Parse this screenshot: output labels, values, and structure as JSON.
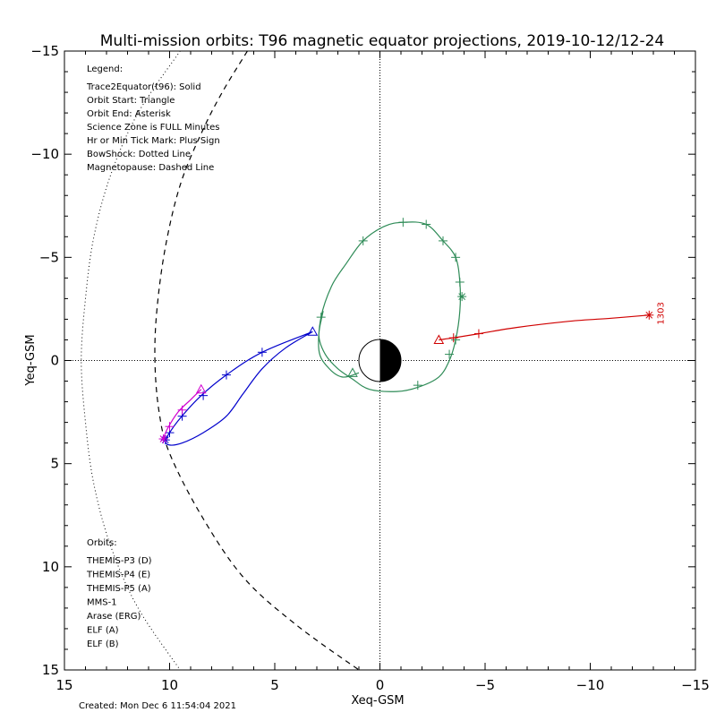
{
  "chart_data": {
    "type": "line",
    "title": "Multi-mission orbits: T96 magnetic equator projections, 2019-10-12/12-24",
    "xlabel": "Xeq-GSM",
    "ylabel": "Yeq-GSM",
    "xlim": [
      15,
      -15
    ],
    "ylim": [
      -15,
      15
    ],
    "x_ticks": [
      15,
      10,
      5,
      0,
      -5,
      -10,
      -15
    ],
    "y_ticks": [
      -15,
      -10,
      -5,
      0,
      5,
      10,
      15
    ],
    "x_tick_labels": [
      "15",
      "10",
      "5",
      "0",
      "−5",
      "−10",
      "−15"
    ],
    "y_tick_labels": [
      "−15",
      "−10",
      "−5",
      "0",
      "5",
      "10",
      "15"
    ],
    "legend": {
      "title": "Legend:",
      "items": [
        "Trace2Equator(t96): Solid",
        "Orbit Start: Triangle",
        "Orbit End: Asterisk",
        "Science Zone is FULL Minutes",
        "Hr or Min Tick Mark: Plus Sign",
        "BowShock: Dotted Line",
        "Magnetopause: Dashed Line"
      ]
    },
    "orbits_legend": {
      "title": "Orbits:",
      "items": [
        {
          "label": "THEMIS-P3 (D)",
          "color": "#00e5e5"
        },
        {
          "label": "THEMIS-P4 (E)",
          "color": "#0000cc"
        },
        {
          "label": "THEMIS-P5 (A)",
          "color": "#d000d0"
        },
        {
          "label": "MMS-1",
          "color": "#000000"
        },
        {
          "label": "Arase (ERG)",
          "color": "#2e8b57"
        },
        {
          "label": "ELF (A)",
          "color": "#4a7fd0"
        },
        {
          "label": "ELF (B)",
          "color": "#d00000"
        }
      ]
    },
    "created_text": "Created: Mon Dec  6 11:54:04 2021",
    "end_time_label": "1303",
    "bowshock": {
      "style": "dotted",
      "points": [
        [
          9.5,
          -15
        ],
        [
          11.5,
          -12
        ],
        [
          12.8,
          -9
        ],
        [
          13.6,
          -6
        ],
        [
          14.0,
          -3
        ],
        [
          14.2,
          0
        ],
        [
          14.0,
          3
        ],
        [
          13.6,
          6
        ],
        [
          12.8,
          9
        ],
        [
          11.5,
          12
        ],
        [
          9.5,
          15
        ]
      ]
    },
    "magnetopause": {
      "style": "dashed",
      "points": [
        [
          6.3,
          -15
        ],
        [
          7.5,
          -13
        ],
        [
          8.5,
          -11
        ],
        [
          9.5,
          -8.5
        ],
        [
          10.2,
          -5.5
        ],
        [
          10.6,
          -2.5
        ],
        [
          10.7,
          0
        ],
        [
          10.5,
          2.5
        ],
        [
          10.0,
          4.5
        ],
        [
          8.5,
          7.5
        ],
        [
          6.5,
          10.5
        ],
        [
          4.0,
          12.8
        ],
        [
          1.0,
          15
        ]
      ]
    },
    "series": [
      {
        "name": "THEMIS-P4 (E)",
        "color": "#0000cc",
        "points": [
          [
            3.2,
            -1.4
          ],
          [
            4.5,
            -0.6
          ],
          [
            5.6,
            0.4
          ],
          [
            6.5,
            1.6
          ],
          [
            7.3,
            2.7
          ],
          [
            8.4,
            3.5
          ],
          [
            9.4,
            4.0
          ],
          [
            10.0,
            4.1
          ],
          [
            10.2,
            3.9
          ],
          [
            10.0,
            3.5
          ],
          [
            9.5,
            2.8
          ],
          [
            8.5,
            1.7
          ],
          [
            7.3,
            0.7
          ],
          [
            5.6,
            -0.4
          ],
          [
            3.2,
            -1.4
          ]
        ],
        "start": [
          3.2,
          -1.4
        ],
        "end": [
          10.2,
          3.85
        ],
        "ticks": [
          [
            5.6,
            -0.4
          ],
          [
            7.3,
            0.7
          ],
          [
            8.4,
            1.7
          ],
          [
            9.4,
            2.7
          ],
          [
            10.0,
            3.5
          ]
        ]
      },
      {
        "name": "THEMIS-P5 (A)",
        "color": "#d000d0",
        "points": [
          [
            8.5,
            1.4
          ],
          [
            9.0,
            1.9
          ],
          [
            9.6,
            2.5
          ],
          [
            10.1,
            3.3
          ],
          [
            10.3,
            3.8
          ]
        ],
        "start": [
          8.5,
          1.4
        ],
        "end": [
          10.3,
          3.8
        ],
        "ticks": [
          [
            9.4,
            2.4
          ],
          [
            10.0,
            3.2
          ]
        ]
      },
      {
        "name": "Arase (ERG)",
        "color": "#2e8b57",
        "points": [
          [
            1.0,
            0.6
          ],
          [
            1.8,
            0.8
          ],
          [
            2.5,
            0.3
          ],
          [
            2.9,
            -0.5
          ],
          [
            2.8,
            -2.1
          ],
          [
            2.3,
            -3.6
          ],
          [
            1.6,
            -4.7
          ],
          [
            0.8,
            -5.8
          ],
          [
            -0.2,
            -6.5
          ],
          [
            -1.1,
            -6.7
          ],
          [
            -2.2,
            -6.6
          ],
          [
            -3.0,
            -5.8
          ],
          [
            -3.6,
            -5.0
          ],
          [
            -3.8,
            -3.8
          ],
          [
            -3.8,
            -2.4
          ],
          [
            -3.6,
            -1.0
          ],
          [
            -3.3,
            0.0
          ],
          [
            -2.8,
            0.8
          ],
          [
            -1.8,
            1.3
          ],
          [
            -0.8,
            1.5
          ],
          [
            0.5,
            1.4
          ],
          [
            1.3,
            0.9
          ],
          [
            2.0,
            0.4
          ],
          [
            2.6,
            -0.3
          ],
          [
            2.9,
            -1.2
          ],
          [
            2.7,
            -2.4
          ]
        ],
        "start": [
          1.3,
          0.6
        ],
        "end": [
          -3.9,
          -3.1
        ],
        "ticks": [
          [
            2.8,
            -2.1
          ],
          [
            0.8,
            -5.8
          ],
          [
            -1.1,
            -6.7
          ],
          [
            -2.2,
            -6.6
          ],
          [
            -3.0,
            -5.8
          ],
          [
            -3.6,
            -5.0
          ],
          [
            -3.8,
            -3.8
          ],
          [
            -3.6,
            -1.0
          ],
          [
            -3.3,
            -0.3
          ],
          [
            -1.8,
            1.2
          ]
        ]
      },
      {
        "name": "ELF (B)",
        "color": "#d00000",
        "points": [
          [
            -2.8,
            -1.0
          ],
          [
            -3.5,
            -1.1
          ],
          [
            -4.7,
            -1.3
          ],
          [
            -6.5,
            -1.6
          ],
          [
            -9.0,
            -1.9
          ],
          [
            -11.0,
            -2.05
          ],
          [
            -12.8,
            -2.2
          ]
        ],
        "start": [
          -2.8,
          -1.0
        ],
        "end": [
          -12.8,
          -2.2
        ],
        "ticks": [
          [
            -3.5,
            -1.1
          ],
          [
            -4.7,
            -1.3
          ]
        ]
      }
    ]
  }
}
